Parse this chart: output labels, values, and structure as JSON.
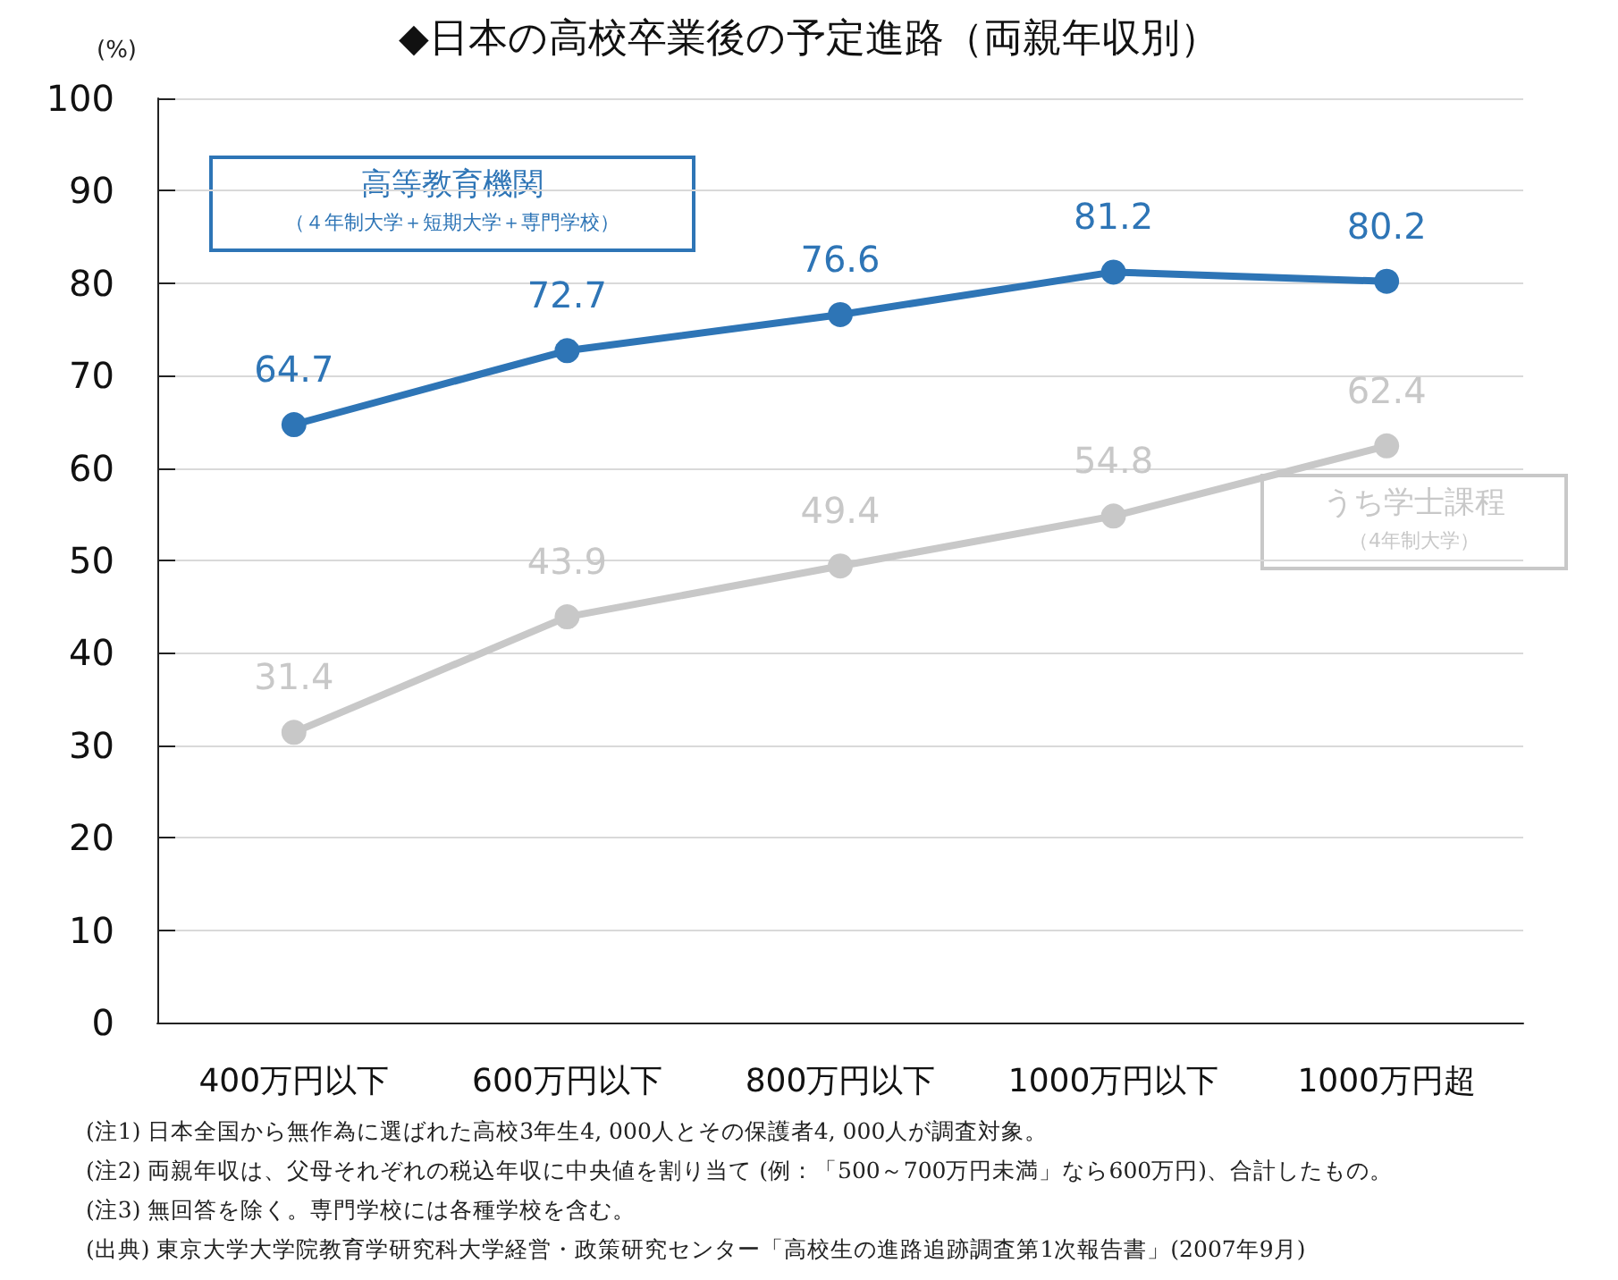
{
  "chart_data": {
    "type": "line",
    "title": "◆日本の高校卒業後の予定進路（両親年収別）",
    "ylabel": "(%)",
    "categories": [
      "400万円以下",
      "600万円以下",
      "800万円以下",
      "1000万円以下",
      "1000万円超"
    ],
    "series": [
      {
        "name": "高等教育機関（４年制大学＋短期大学＋専門学校）",
        "color": "#2e75b6",
        "values": [
          64.7,
          72.7,
          76.6,
          81.2,
          80.2
        ]
      },
      {
        "name": "うち学士課程（4年制大学）",
        "color": "#c8c8c8",
        "values": [
          31.4,
          43.9,
          49.4,
          54.8,
          62.4
        ]
      }
    ],
    "ylim": [
      0,
      100
    ],
    "yticks": [
      0,
      10,
      20,
      30,
      40,
      50,
      60,
      70,
      80,
      90,
      100
    ],
    "grid": "y",
    "legend": false,
    "marker": "circle",
    "line_style": "solid",
    "data_labels": true,
    "annotations": [
      "(注1) 日本全国から無作為に選ばれた高校3年生4, 000人とその保護者4, 000人が調査対象。",
      "(注2) 両親年収は、父母それぞれの税込年収に中央値を割り当て (例：「500～700万円未満」なら600万円)、合計したもの。",
      "(注3) 無回答を除く。専門学校には各種学校を含む。",
      "(出典) 東京大学大学院教育学研究科大学経営・政策研究センター「高校生の進路追跡調査第1次報告書」(2007年9月)"
    ]
  }
}
